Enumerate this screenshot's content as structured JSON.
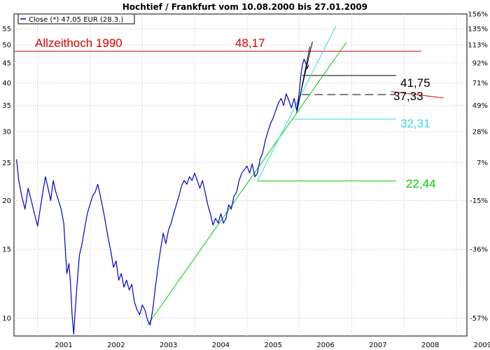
{
  "chart_data": {
    "type": "line",
    "title": "Hochtief / Frankfurt vom 10.08.2000  bis 27.01.2009",
    "scale": "log",
    "ylim": [
      9,
      60
    ],
    "xlim": [
      2000.55,
      2009.2
    ],
    "grid": true,
    "left_ticks": [
      "10",
      "15",
      "20",
      "25",
      "30",
      "35",
      "40",
      "45",
      "50",
      "55"
    ],
    "right_ticks": [
      {
        "label": "156%",
        "value": 60
      },
      {
        "label": "135%",
        "value": 55
      },
      {
        "label": "113%",
        "value": 50
      },
      {
        "label": "92%",
        "value": 45
      },
      {
        "label": "71%",
        "value": 40
      },
      {
        "label": "49%",
        "value": 35
      },
      {
        "label": "28%",
        "value": 30
      },
      {
        "label": "7%",
        "value": 25
      },
      {
        "label": "-15%",
        "value": 20
      },
      {
        "label": "-36%",
        "value": 15
      },
      {
        "label": "-57%",
        "value": 10
      }
    ],
    "x_ticks": [
      "2001",
      "2002",
      "2003",
      "2004",
      "2005",
      "2006",
      "2007",
      "2008",
      "2009"
    ],
    "legend": {
      "label": "Close (*) 47,05 EUR (28.3.)",
      "placement": "top-left",
      "color": "#0000cc"
    },
    "series": [
      {
        "name": "Close (*) 47,05 EUR (28.3.)",
        "color": "#0000cc",
        "points": [
          [
            2000.6,
            25.5
          ],
          [
            2000.64,
            22.5
          ],
          [
            2000.7,
            20.5
          ],
          [
            2000.76,
            19.0
          ],
          [
            2000.82,
            21.5
          ],
          [
            2000.88,
            20.0
          ],
          [
            2000.94,
            18.5
          ],
          [
            2001.0,
            17.2
          ],
          [
            2001.05,
            19.0
          ],
          [
            2001.1,
            21.0
          ],
          [
            2001.15,
            23.0
          ],
          [
            2001.2,
            21.5
          ],
          [
            2001.25,
            20.0
          ],
          [
            2001.3,
            22.5
          ],
          [
            2001.35,
            21.0
          ],
          [
            2001.4,
            20.0
          ],
          [
            2001.45,
            19.0
          ],
          [
            2001.5,
            17.5
          ],
          [
            2001.53,
            15.0
          ],
          [
            2001.56,
            13.0
          ],
          [
            2001.6,
            13.8
          ],
          [
            2001.63,
            12.2
          ],
          [
            2001.66,
            10.2
          ],
          [
            2001.69,
            9.1
          ],
          [
            2001.72,
            10.5
          ],
          [
            2001.76,
            12.5
          ],
          [
            2001.8,
            14.5
          ],
          [
            2001.85,
            15.5
          ],
          [
            2001.9,
            17.0
          ],
          [
            2001.95,
            18.5
          ],
          [
            2002.0,
            19.5
          ],
          [
            2002.05,
            20.5
          ],
          [
            2002.1,
            21.0
          ],
          [
            2002.15,
            22.0
          ],
          [
            2002.2,
            20.5
          ],
          [
            2002.25,
            19.0
          ],
          [
            2002.3,
            17.5
          ],
          [
            2002.35,
            16.0
          ],
          [
            2002.4,
            14.8
          ],
          [
            2002.45,
            13.5
          ],
          [
            2002.5,
            14.0
          ],
          [
            2002.55,
            12.5
          ],
          [
            2002.6,
            13.0
          ],
          [
            2002.65,
            12.0
          ],
          [
            2002.7,
            12.5
          ],
          [
            2002.75,
            11.8
          ],
          [
            2002.8,
            12.2
          ],
          [
            2002.85,
            11.0
          ],
          [
            2002.9,
            10.5
          ],
          [
            2002.95,
            10.2
          ],
          [
            2003.0,
            10.8
          ],
          [
            2003.05,
            10.5
          ],
          [
            2003.1,
            9.9
          ],
          [
            2003.15,
            9.6
          ],
          [
            2003.2,
            10.5
          ],
          [
            2003.25,
            12.0
          ],
          [
            2003.3,
            13.5
          ],
          [
            2003.35,
            15.0
          ],
          [
            2003.4,
            16.5
          ],
          [
            2003.45,
            15.5
          ],
          [
            2003.5,
            16.8
          ],
          [
            2003.55,
            17.5
          ],
          [
            2003.6,
            18.5
          ],
          [
            2003.65,
            19.5
          ],
          [
            2003.7,
            20.5
          ],
          [
            2003.75,
            21.8
          ],
          [
            2003.8,
            22.5
          ],
          [
            2003.85,
            22.0
          ],
          [
            2003.9,
            23.0
          ],
          [
            2003.95,
            22.5
          ],
          [
            2004.0,
            23.5
          ],
          [
            2004.05,
            22.5
          ],
          [
            2004.1,
            21.5
          ],
          [
            2004.15,
            22.5
          ],
          [
            2004.2,
            21.0
          ],
          [
            2004.25,
            19.5
          ],
          [
            2004.3,
            18.5
          ],
          [
            2004.35,
            17.3
          ],
          [
            2004.4,
            18.0
          ],
          [
            2004.45,
            17.5
          ],
          [
            2004.5,
            18.5
          ],
          [
            2004.55,
            17.5
          ],
          [
            2004.6,
            18.0
          ],
          [
            2004.65,
            19.5
          ],
          [
            2004.7,
            19.0
          ],
          [
            2004.75,
            20.5
          ],
          [
            2004.8,
            21.0
          ],
          [
            2004.85,
            22.5
          ],
          [
            2004.9,
            23.5
          ],
          [
            2004.95,
            24.0
          ],
          [
            2005.0,
            24.5
          ],
          [
            2005.05,
            23.5
          ],
          [
            2005.1,
            24.8
          ],
          [
            2005.15,
            23.0
          ],
          [
            2005.2,
            23.5
          ],
          [
            2005.25,
            25.5
          ],
          [
            2005.3,
            26.5
          ],
          [
            2005.35,
            28.5
          ],
          [
            2005.4,
            30.0
          ],
          [
            2005.45,
            31.5
          ],
          [
            2005.5,
            32.5
          ],
          [
            2005.55,
            34.0
          ],
          [
            2005.6,
            35.5
          ],
          [
            2005.65,
            36.5
          ],
          [
            2005.7,
            35.0
          ],
          [
            2005.75,
            37.5
          ],
          [
            2005.8,
            36.0
          ],
          [
            2005.85,
            34.5
          ],
          [
            2005.9,
            36.5
          ],
          [
            2005.95,
            34.0
          ],
          [
            2006.0,
            38.0
          ],
          [
            2006.03,
            42.0
          ],
          [
            2006.06,
            44.5
          ],
          [
            2006.09,
            46.0
          ],
          [
            2006.12,
            45.0
          ],
          [
            2006.15,
            43.5
          ],
          [
            2006.18,
            44.5
          ]
        ]
      }
    ],
    "lines": [
      {
        "name": "ath-line",
        "color": "#dd0000",
        "from": [
          2000.55,
          48.17
        ],
        "to": [
          2008.33,
          48.17
        ]
      },
      {
        "name": "support-41-line",
        "color": "#000000",
        "from": [
          2006.05,
          41.75
        ],
        "to": [
          2007.85,
          41.75
        ]
      },
      {
        "name": "support-37-line",
        "color": "#000000",
        "dashed": true,
        "from": [
          2006.05,
          37.33
        ],
        "to": [
          2007.85,
          37.33
        ]
      },
      {
        "name": "support-32-line",
        "color": "#33dddd",
        "from": [
          2005.85,
          32.31
        ],
        "to": [
          2007.85,
          32.31
        ]
      },
      {
        "name": "support-22-line",
        "color": "#00cc00",
        "from": [
          2005.2,
          22.44
        ],
        "to": [
          2007.85,
          22.44
        ]
      },
      {
        "name": "trend-long-green",
        "color": "#00cc00",
        "from": [
          2003.1,
          9.6
        ],
        "to": [
          2006.9,
          50.8
        ]
      },
      {
        "name": "trend-cyan",
        "color": "#33dddd",
        "from": [
          2005.2,
          22.44
        ],
        "to": [
          2006.7,
          56.0
        ]
      },
      {
        "name": "trend-short-black-1",
        "color": "#000000",
        "from": [
          2005.95,
          34.0
        ],
        "to": [
          2006.25,
          51.0
        ]
      },
      {
        "name": "trend-short-black-2",
        "color": "#000000",
        "from": [
          2005.95,
          33.5
        ],
        "to": [
          2006.2,
          49.5
        ]
      },
      {
        "name": "red-mark-37",
        "color": "#dd0000",
        "from": [
          2007.75,
          38.0
        ],
        "to": [
          2008.75,
          36.6
        ]
      }
    ],
    "annotations": [
      {
        "name": "ath-label",
        "text": "Allzeithoch 1990",
        "color": "#dd0000"
      },
      {
        "name": "ath-value",
        "text": "48,17",
        "color": "#dd0000"
      },
      {
        "name": "value-41",
        "text": "41,75",
        "color": "#000000"
      },
      {
        "name": "value-37",
        "text": "37,33",
        "color": "#000000"
      },
      {
        "name": "value-32",
        "text": "32,31",
        "color": "#33dddd"
      },
      {
        "name": "value-22",
        "text": "22,44",
        "color": "#00cc00"
      }
    ]
  }
}
